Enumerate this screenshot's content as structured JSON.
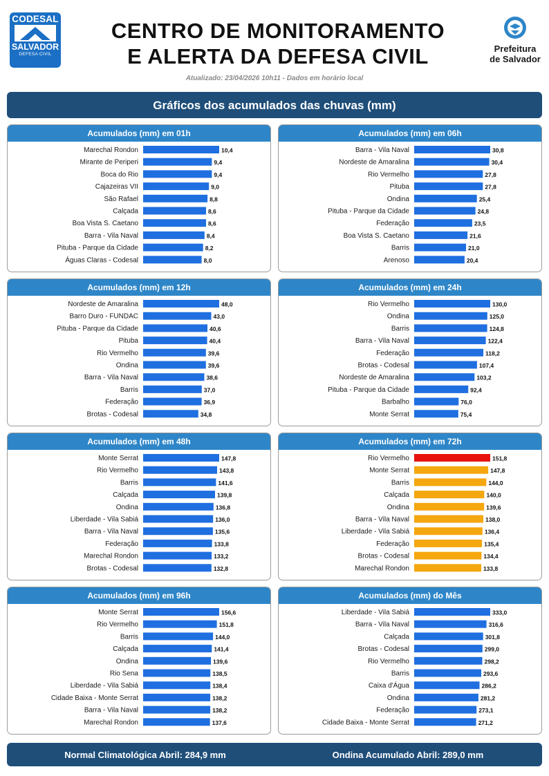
{
  "header": {
    "logo_left": {
      "line1": "CODESAL",
      "line2": "SALVADOR",
      "line3": "DEFESA CIVIL"
    },
    "title_line1": "CENTRO DE MONITORAMENTO",
    "title_line2": "E ALERTA DA DEFESA CIVIL",
    "updated": "Atualizado: 23/04/2026 10h11 - Dados em horário local",
    "logo_right": {
      "line1": "Prefeitura",
      "line2": "de Salvador"
    }
  },
  "section_title": "Gráficos dos acumulados das chuvas (mm)",
  "colors": {
    "blue": "#1f6fe0",
    "orange": "#f5a70f",
    "red": "#e8130f",
    "header_dark": "#1f4e79",
    "panel_title": "#2e86c8"
  },
  "chart_data": [
    {
      "type": "bar",
      "orientation": "horizontal",
      "title": "Acumulados (mm) em 01h",
      "categories": [
        "Marechal Rondon",
        "Mirante de Periperi",
        "Boca do Rio",
        "Cajazeiras VII",
        "São Rafael",
        "Calçada",
        "Boa Vista S. Caetano",
        "Barra - Vila Naval",
        "Pituba - Parque da Cidade",
        "Águas Claras - Codesal"
      ],
      "values": [
        10.4,
        9.4,
        9.4,
        9.0,
        8.8,
        8.6,
        8.6,
        8.4,
        8.2,
        8.0
      ],
      "labels": [
        "10,4",
        "9,4",
        "9,4",
        "9,0",
        "8,8",
        "8,6",
        "8,6",
        "8,4",
        "8,2",
        "8,0"
      ],
      "colors": [
        "blue",
        "blue",
        "blue",
        "blue",
        "blue",
        "blue",
        "blue",
        "blue",
        "blue",
        "blue"
      ]
    },
    {
      "type": "bar",
      "orientation": "horizontal",
      "title": "Acumulados (mm) em 06h",
      "categories": [
        "Barra - Vila Naval",
        "Nordeste de Amaralina",
        "Rio Vermelho",
        "Pituba",
        "Ondina",
        "Pituba - Parque da Cidade",
        "Federação",
        "Boa Vista S. Caetano",
        "Barris",
        "Arenoso"
      ],
      "values": [
        30.8,
        30.4,
        27.8,
        27.8,
        25.4,
        24.8,
        23.5,
        21.6,
        21.0,
        20.4
      ],
      "labels": [
        "30,8",
        "30,4",
        "27,8",
        "27,8",
        "25,4",
        "24,8",
        "23,5",
        "21,6",
        "21,0",
        "20,4"
      ],
      "colors": [
        "blue",
        "blue",
        "blue",
        "blue",
        "blue",
        "blue",
        "blue",
        "blue",
        "blue",
        "blue"
      ]
    },
    {
      "type": "bar",
      "orientation": "horizontal",
      "title": "Acumulados (mm) em 12h",
      "categories": [
        "Nordeste de Amaralina",
        "Barro Duro - FUNDAC",
        "Pituba - Parque da Cidade",
        "Pituba",
        "Rio Vermelho",
        "Ondina",
        "Barra - Vila Naval",
        "Barris",
        "Federação",
        "Brotas - Codesal"
      ],
      "values": [
        48.0,
        43.0,
        40.6,
        40.4,
        39.6,
        39.6,
        38.6,
        37.0,
        36.9,
        34.8
      ],
      "labels": [
        "48,0",
        "43,0",
        "40,6",
        "40,4",
        "39,6",
        "39,6",
        "38,6",
        "37,0",
        "36,9",
        "34,8"
      ],
      "colors": [
        "blue",
        "blue",
        "blue",
        "blue",
        "blue",
        "blue",
        "blue",
        "blue",
        "blue",
        "blue"
      ]
    },
    {
      "type": "bar",
      "orientation": "horizontal",
      "title": "Acumulados (mm) em 24h",
      "categories": [
        "Rio Vermelho",
        "Ondina",
        "Barris",
        "Barra - Vila Naval",
        "Federação",
        "Brotas - Codesal",
        "Nordeste de Amaralina",
        "Pituba - Parque da Cidade",
        "Barbalho",
        "Monte Serrat"
      ],
      "values": [
        130.0,
        125.0,
        124.8,
        122.4,
        118.2,
        107.4,
        103.2,
        92.4,
        76.0,
        75.4
      ],
      "labels": [
        "130,0",
        "125,0",
        "124,8",
        "122,4",
        "118,2",
        "107,4",
        "103,2",
        "92,4",
        "76,0",
        "75,4"
      ],
      "colors": [
        "blue",
        "blue",
        "blue",
        "blue",
        "blue",
        "blue",
        "blue",
        "blue",
        "blue",
        "blue"
      ]
    },
    {
      "type": "bar",
      "orientation": "horizontal",
      "title": "Acumulados (mm) em 48h",
      "categories": [
        "Monte Serrat",
        "Rio Vermelho",
        "Barris",
        "Calçada",
        "Ondina",
        "Liberdade - Vila Sabiá",
        "Barra - Vila Naval",
        "Federação",
        "Marechal Rondon",
        "Brotas - Codesal"
      ],
      "values": [
        147.8,
        143.8,
        141.6,
        139.8,
        136.8,
        136.0,
        135.6,
        133.8,
        133.2,
        132.8
      ],
      "labels": [
        "147,8",
        "143,8",
        "141,6",
        "139,8",
        "136,8",
        "136,0",
        "135,6",
        "133,8",
        "133,2",
        "132,8"
      ],
      "colors": [
        "blue",
        "blue",
        "blue",
        "blue",
        "blue",
        "blue",
        "blue",
        "blue",
        "blue",
        "blue"
      ]
    },
    {
      "type": "bar",
      "orientation": "horizontal",
      "title": "Acumulados (mm) em 72h",
      "categories": [
        "Rio Vermelho",
        "Monte Serrat",
        "Barris",
        "Calçada",
        "Ondina",
        "Barra - Vila Naval",
        "Liberdade - Vila Sabiá",
        "Federação",
        "Brotas - Codesal",
        "Marechal Rondon"
      ],
      "values": [
        151.8,
        147.8,
        144.0,
        140.0,
        139.6,
        138.0,
        136.4,
        135.4,
        134.4,
        133.8
      ],
      "labels": [
        "151,8",
        "147,8",
        "144,0",
        "140,0",
        "139,6",
        "138,0",
        "136,4",
        "135,4",
        "134,4",
        "133,8"
      ],
      "colors": [
        "red",
        "orange",
        "orange",
        "orange",
        "orange",
        "orange",
        "orange",
        "orange",
        "orange",
        "orange"
      ]
    },
    {
      "type": "bar",
      "orientation": "horizontal",
      "title": "Acumulados (mm) em 96h",
      "categories": [
        "Monte Serrat",
        "Rio Vermelho",
        "Barris",
        "Calçada",
        "Ondina",
        "Rio Sena",
        "Liberdade - Vila Sabiá",
        "Cidade Baixa - Monte Serrat",
        "Barra - Vila Naval",
        "Marechal Rondon"
      ],
      "values": [
        156.6,
        151.8,
        144.0,
        141.4,
        139.6,
        138.5,
        138.4,
        138.2,
        138.2,
        137.6
      ],
      "labels": [
        "156,6",
        "151,8",
        "144,0",
        "141,4",
        "139,6",
        "138,5",
        "138,4",
        "138,2",
        "138,2",
        "137,6"
      ],
      "colors": [
        "blue",
        "blue",
        "blue",
        "blue",
        "blue",
        "blue",
        "blue",
        "blue",
        "blue",
        "blue"
      ]
    },
    {
      "type": "bar",
      "orientation": "horizontal",
      "title": "Acumulados (mm) do Mês",
      "categories": [
        "Liberdade - Vila Sabiá",
        "Barra - Vila Naval",
        "Calçada",
        "Brotas - Codesal",
        "Rio Vermelho",
        "Barris",
        "Caixa d'Água",
        "Ondina",
        "Federação",
        "Cidade Baixa - Monte Serrat"
      ],
      "values": [
        333.0,
        316.6,
        301.8,
        299.0,
        298.2,
        293.6,
        286.2,
        281.2,
        273.1,
        271.2
      ],
      "labels": [
        "333,0",
        "316,6",
        "301,8",
        "299,0",
        "298,2",
        "293,6",
        "286,2",
        "281,2",
        "273,1",
        "271,2"
      ],
      "colors": [
        "blue",
        "blue",
        "blue",
        "blue",
        "blue",
        "blue",
        "blue",
        "blue",
        "blue",
        "blue"
      ]
    }
  ],
  "footer": {
    "left": "Normal Climatológica Abril: 284,9 mm",
    "right": "Ondina Acumulado Abril: 289,0 mm"
  }
}
